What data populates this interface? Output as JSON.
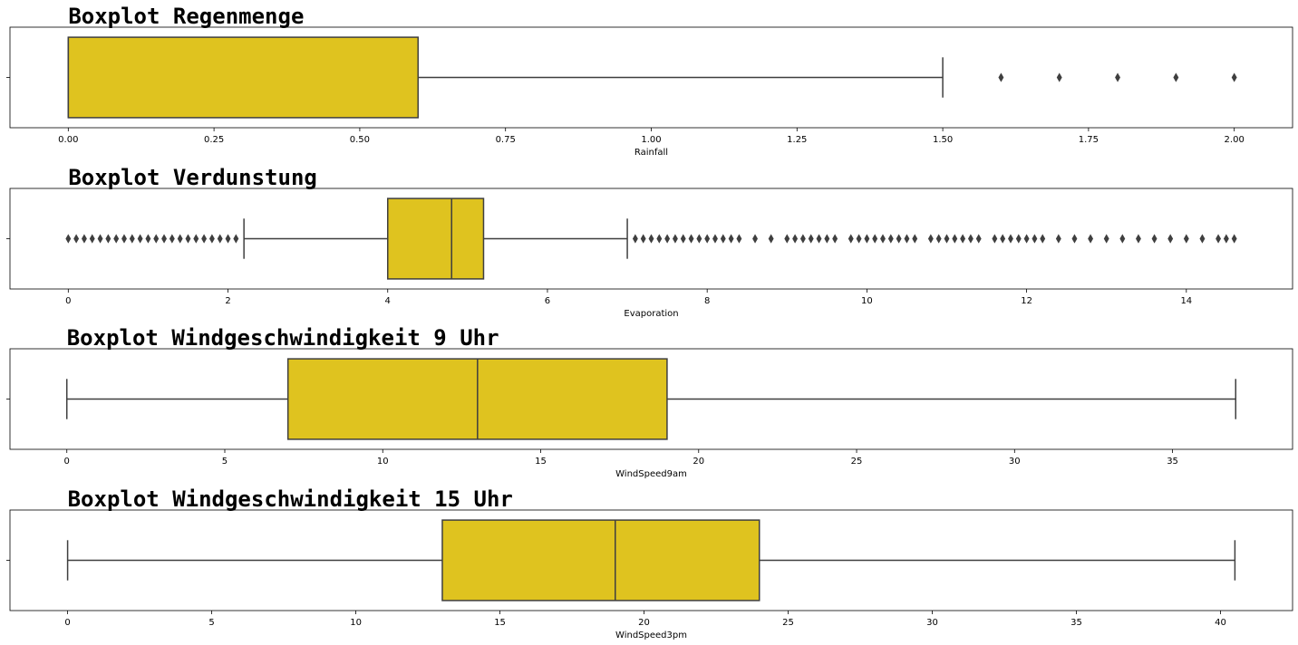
{
  "chart_data": [
    {
      "type": "boxplot",
      "title": "Boxplot Regenmenge",
      "xlabel": "Rainfall",
      "xlim": [
        -0.1,
        2.1
      ],
      "xticks": [
        0.0,
        0.25,
        0.5,
        0.75,
        1.0,
        1.25,
        1.5,
        1.75,
        2.0
      ],
      "xtick_labels": [
        "0.00",
        "0.25",
        "0.50",
        "0.75",
        "1.00",
        "1.25",
        "1.50",
        "1.75",
        "2.00"
      ],
      "whisker_low": 0.0,
      "q1": 0.0,
      "median": 0.0,
      "q3": 0.6,
      "whisker_high": 1.5,
      "outliers": [
        1.6,
        1.7,
        1.8,
        1.9,
        2.0
      ]
    },
    {
      "type": "boxplot",
      "title": "Boxplot Verdunstung",
      "xlabel": "Evaporation",
      "xlim": [
        -0.73,
        15.33
      ],
      "xticks": [
        0,
        2,
        4,
        6,
        8,
        10,
        12,
        14
      ],
      "xtick_labels": [
        "0",
        "2",
        "4",
        "6",
        "8",
        "10",
        "12",
        "14"
      ],
      "whisker_low": 2.2,
      "q1": 4.0,
      "median": 4.8,
      "q3": 5.2,
      "whisker_high": 7.0,
      "outliers": [
        0.0,
        0.1,
        0.2,
        0.3,
        0.4,
        0.5,
        0.6,
        0.7,
        0.8,
        0.9,
        1.0,
        1.1,
        1.2,
        1.3,
        1.4,
        1.5,
        1.6,
        1.7,
        1.8,
        1.9,
        2.0,
        2.1,
        7.1,
        7.2,
        7.3,
        7.4,
        7.5,
        7.6,
        7.7,
        7.8,
        7.9,
        8.0,
        8.1,
        8.2,
        8.3,
        8.4,
        8.6,
        8.8,
        9.0,
        9.1,
        9.2,
        9.3,
        9.4,
        9.5,
        9.6,
        9.8,
        9.9,
        10.0,
        10.1,
        10.2,
        10.3,
        10.4,
        10.5,
        10.6,
        10.8,
        10.9,
        11.0,
        11.1,
        11.2,
        11.3,
        11.4,
        11.6,
        11.7,
        11.8,
        11.9,
        12.0,
        12.1,
        12.2,
        12.4,
        12.6,
        12.8,
        13.0,
        13.2,
        13.4,
        13.6,
        13.8,
        14.0,
        14.2,
        14.4,
        14.5,
        14.6
      ]
    },
    {
      "type": "boxplot",
      "title": "Boxplot Windgeschwindigkeit 9 Uhr",
      "xlabel": "WindSpeed9am",
      "xlim": [
        -1.8,
        38.8
      ],
      "xticks": [
        0,
        5,
        10,
        15,
        20,
        25,
        30,
        35
      ],
      "xtick_labels": [
        "0",
        "5",
        "10",
        "15",
        "20",
        "25",
        "30",
        "35"
      ],
      "whisker_low": 0,
      "q1": 7,
      "median": 13,
      "q3": 19,
      "whisker_high": 37,
      "outliers": []
    },
    {
      "type": "boxplot",
      "title": "Boxplot Windgeschwindigkeit 15 Uhr",
      "xlabel": "WindSpeed3pm",
      "xlim": [
        -2.0,
        42.5
      ],
      "xticks": [
        0,
        5,
        10,
        15,
        20,
        25,
        30,
        35,
        40
      ],
      "xtick_labels": [
        "0",
        "5",
        "10",
        "15",
        "20",
        "25",
        "30",
        "35",
        "40"
      ],
      "whisker_low": 0,
      "q1": 13,
      "median": 19,
      "q3": 24,
      "whisker_high": 40.5,
      "outliers": []
    }
  ],
  "colors": {
    "box_fill": "#DFC31F",
    "line": "#3F3F3F",
    "axes": "#000000",
    "background": "#FFFFFF"
  }
}
